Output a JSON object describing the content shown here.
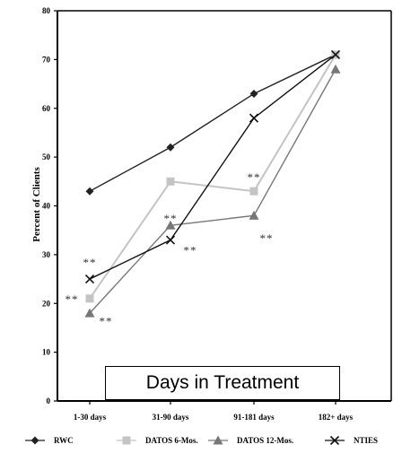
{
  "chart_data": {
    "type": "line",
    "categories": [
      "1-30 days",
      "31-90 days",
      "91-181 days",
      "182+ days"
    ],
    "series": [
      {
        "name": "RWC",
        "values": [
          43,
          52,
          63,
          71
        ],
        "color": "#222222",
        "marker": "diamond"
      },
      {
        "name": "DATOS 6-Mos.",
        "values": [
          21,
          45,
          43,
          71
        ],
        "color": "#c4c4c4",
        "marker": "square"
      },
      {
        "name": "DATOS 12-Mos.",
        "values": [
          18,
          36,
          38,
          68
        ],
        "color": "#777777",
        "marker": "triangle"
      },
      {
        "name": "NTIES",
        "values": [
          25,
          33,
          58,
          71
        ],
        "color": "#111111",
        "marker": "x"
      }
    ],
    "ylabel": "Percent of Clients",
    "xlabel": "Days in Treatment",
    "ylim": [
      0,
      80
    ],
    "yticks": [
      0,
      10,
      20,
      30,
      40,
      50,
      60,
      70,
      80
    ],
    "grid": false,
    "legend": "bottom",
    "annotations": [
      {
        "text": "**",
        "category": 0,
        "value": 28.5
      },
      {
        "text": "**",
        "category": 0,
        "value": 21
      },
      {
        "text": "**",
        "category": 0,
        "value": 16.5
      },
      {
        "text": "**",
        "category": 1,
        "value": 37.5
      },
      {
        "text": "**",
        "category": 1,
        "value": 31
      },
      {
        "text": "**",
        "category": 2,
        "value": 46
      },
      {
        "text": "**",
        "category": 2,
        "value": 33.5
      }
    ]
  }
}
